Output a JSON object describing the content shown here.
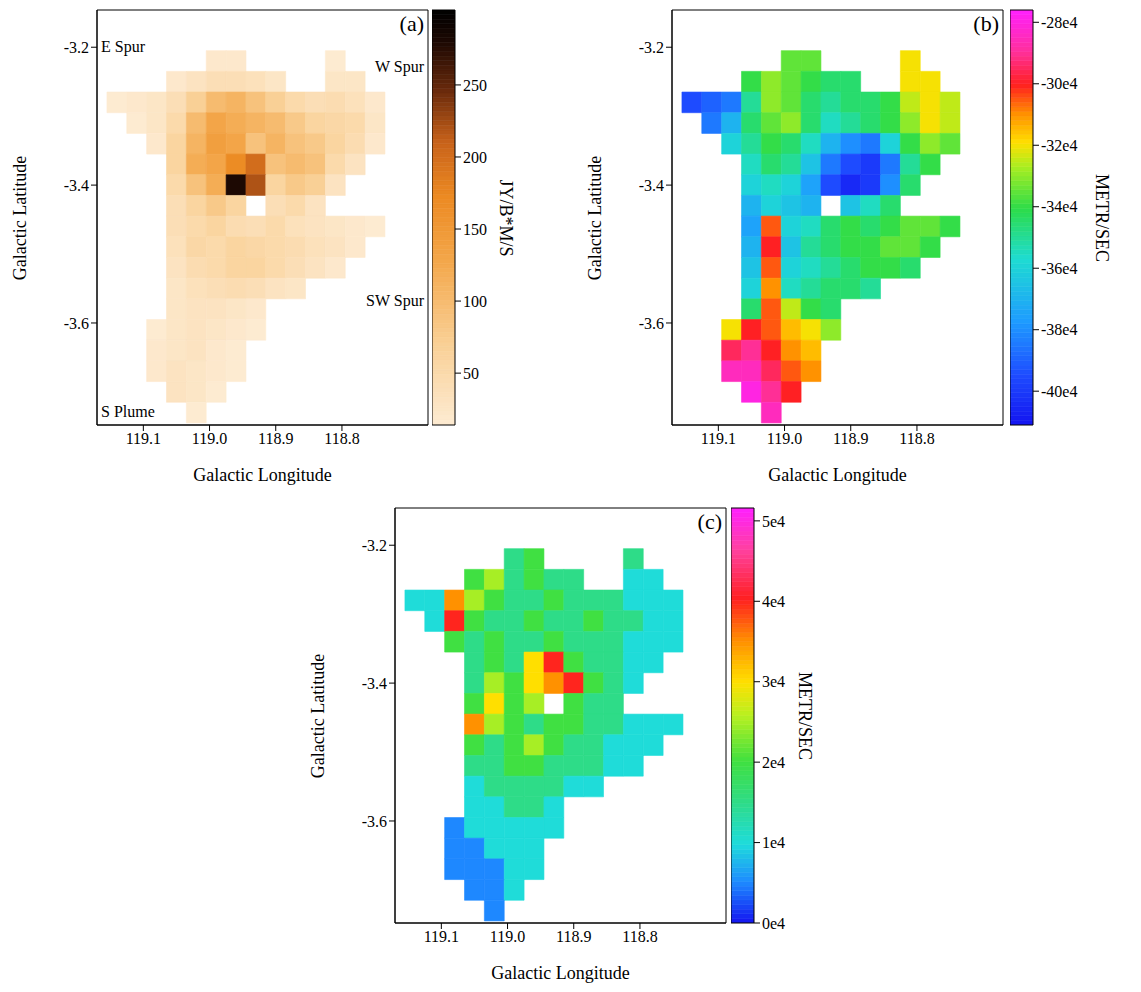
{
  "chart_data": [
    {
      "type": "heatmap",
      "title": "(a)",
      "x_label": "Galactic Longitude",
      "y_label": "Galactic Latitude",
      "xlim": [
        119.17,
        118.67
      ],
      "ylim": [
        -3.748,
        -3.146
      ],
      "xticks": [
        {
          "value": 119.1,
          "label": "119.1"
        },
        {
          "value": 119,
          "label": "119.0"
        },
        118.9,
        118.8
      ],
      "yticks": [
        -3.2,
        -3.4,
        -3.6
      ],
      "annotations": [
        "E Spur",
        "W Spur",
        "SW Spur",
        "S Plume"
      ],
      "colorbar": {
        "label": "JY/B*M/S",
        "range": [
          14,
          302
        ],
        "ticks": [
          50,
          100,
          150,
          200,
          250
        ]
      },
      "x": [
        119.14,
        119.11,
        119.08,
        119.05,
        119.02,
        118.99,
        118.96,
        118.93,
        118.9,
        118.87,
        118.84,
        118.81,
        118.78,
        118.75
      ],
      "y": [
        -3.22,
        -3.25,
        -3.28,
        -3.31,
        -3.34,
        -3.37,
        -3.4,
        -3.43,
        -3.46,
        -3.49,
        -3.52,
        -3.55,
        -3.58,
        -3.61,
        -3.64,
        -3.67,
        -3.7,
        -3.73
      ],
      "z": [
        [
          null,
          null,
          null,
          null,
          null,
          20,
          20,
          null,
          null,
          null,
          null,
          15,
          null,
          null
        ],
        [
          null,
          null,
          null,
          20,
          30,
          40,
          40,
          35,
          25,
          null,
          null,
          25,
          25,
          null
        ],
        [
          15,
          20,
          25,
          40,
          70,
          100,
          110,
          90,
          70,
          50,
          40,
          45,
          35,
          20
        ],
        [
          null,
          15,
          25,
          50,
          100,
          130,
          120,
          110,
          100,
          80,
          60,
          55,
          50,
          25
        ],
        [
          null,
          null,
          20,
          60,
          110,
          140,
          130,
          90,
          110,
          90,
          80,
          60,
          45,
          20
        ],
        [
          null,
          null,
          null,
          60,
          120,
          130,
          170,
          200,
          90,
          100,
          90,
          50,
          30,
          null
        ],
        [
          null,
          null,
          null,
          50,
          90,
          120,
          280,
          220,
          60,
          80,
          70,
          30,
          null,
          null
        ],
        [
          null,
          null,
          null,
          40,
          60,
          80,
          60,
          null,
          40,
          50,
          30,
          null,
          null,
          null
        ],
        [
          null,
          null,
          null,
          40,
          50,
          60,
          45,
          40,
          50,
          35,
          30,
          25,
          20,
          15
        ],
        [
          null,
          null,
          null,
          35,
          55,
          50,
          60,
          55,
          50,
          45,
          35,
          30,
          20,
          null
        ],
        [
          null,
          null,
          null,
          30,
          45,
          50,
          60,
          60,
          50,
          40,
          30,
          20,
          null,
          null
        ],
        [
          null,
          null,
          null,
          25,
          35,
          40,
          45,
          40,
          30,
          25,
          null,
          null,
          null,
          null
        ],
        [
          null,
          null,
          null,
          25,
          30,
          30,
          25,
          20,
          null,
          null,
          null,
          null,
          null,
          null
        ],
        [
          null,
          null,
          15,
          25,
          30,
          25,
          20,
          15,
          null,
          null,
          null,
          null,
          null,
          null
        ],
        [
          null,
          null,
          20,
          25,
          30,
          20,
          15,
          null,
          null,
          null,
          null,
          null,
          null,
          null
        ],
        [
          null,
          null,
          20,
          30,
          25,
          20,
          15,
          null,
          null,
          null,
          null,
          null,
          null,
          null
        ],
        [
          null,
          null,
          null,
          30,
          25,
          15,
          null,
          null,
          null,
          null,
          null,
          null,
          null,
          null
        ],
        [
          null,
          null,
          null,
          null,
          15,
          null,
          null,
          null,
          null,
          null,
          null,
          null,
          null,
          null
        ]
      ]
    },
    {
      "type": "heatmap",
      "title": "(b)",
      "x_label": "Galactic Longitude",
      "y_label": "Galactic Latitude",
      "xlim": [
        119.17,
        118.67
      ],
      "ylim": [
        -3.748,
        -3.146
      ],
      "xticks": [
        {
          "value": 119.1,
          "label": "119.1"
        },
        {
          "value": 119,
          "label": "119.0"
        },
        118.9,
        118.8
      ],
      "yticks": [
        -3.2,
        -3.4,
        -3.6
      ],
      "colorbar": {
        "label": "METR/SEC",
        "range": [
          -411000,
          -276000
        ],
        "ticks": [
          {
            "value": -280000,
            "label": "-28e4"
          },
          {
            "value": -300000,
            "label": "-30e4"
          },
          {
            "value": -320000,
            "label": "-32e4"
          },
          {
            "value": -340000,
            "label": "-34e4"
          },
          {
            "value": -360000,
            "label": "-36e4"
          },
          {
            "value": -380000,
            "label": "-38e4"
          },
          {
            "value": -400000,
            "label": "-40e4"
          }
        ]
      },
      "x": [
        119.14,
        119.11,
        119.08,
        119.05,
        119.02,
        118.99,
        118.96,
        118.93,
        118.9,
        118.87,
        118.84,
        118.81,
        118.78,
        118.75
      ],
      "y": [
        -3.22,
        -3.25,
        -3.28,
        -3.31,
        -3.34,
        -3.37,
        -3.4,
        -3.43,
        -3.46,
        -3.49,
        -3.52,
        -3.55,
        -3.58,
        -3.61,
        -3.64,
        -3.67,
        -3.7,
        -3.73
      ],
      "z": [
        [
          null,
          null,
          null,
          null,
          null,
          -335000,
          -335000,
          null,
          null,
          null,
          null,
          -320000,
          null,
          null
        ],
        [
          null,
          null,
          null,
          -340000,
          -330000,
          -335000,
          -340000,
          -345000,
          -345000,
          null,
          null,
          -320000,
          -320000,
          null
        ],
        [
          -395000,
          -390000,
          -385000,
          -350000,
          -330000,
          -335000,
          -345000,
          -350000,
          -345000,
          -345000,
          -340000,
          -325000,
          -320000,
          -325000
        ],
        [
          null,
          -385000,
          -370000,
          -345000,
          -335000,
          -330000,
          -345000,
          -355000,
          -350000,
          -345000,
          -340000,
          -330000,
          -320000,
          -325000
        ],
        [
          null,
          null,
          -360000,
          -350000,
          -340000,
          -345000,
          -355000,
          -370000,
          -380000,
          -385000,
          -360000,
          -340000,
          -330000,
          -335000
        ],
        [
          null,
          null,
          null,
          -355000,
          -345000,
          -350000,
          -365000,
          -385000,
          -395000,
          -400000,
          -385000,
          -350000,
          -340000,
          null
        ],
        [
          null,
          null,
          null,
          -360000,
          -355000,
          -360000,
          -375000,
          -395000,
          -405000,
          -400000,
          -380000,
          -345000,
          null,
          null
        ],
        [
          null,
          null,
          null,
          -370000,
          -360000,
          -365000,
          -370000,
          null,
          -365000,
          -355000,
          -345000,
          null,
          null,
          null
        ],
        [
          null,
          null,
          null,
          -375000,
          -305000,
          -360000,
          -355000,
          -345000,
          -340000,
          -345000,
          -340000,
          -335000,
          -335000,
          -340000
        ],
        [
          null,
          null,
          null,
          -370000,
          -300000,
          -365000,
          -350000,
          -345000,
          -340000,
          -340000,
          -335000,
          -335000,
          -340000,
          null
        ],
        [
          null,
          null,
          null,
          -365000,
          -305000,
          -360000,
          -355000,
          -350000,
          -345000,
          -340000,
          -340000,
          -345000,
          null,
          null
        ],
        [
          null,
          null,
          null,
          -360000,
          -310000,
          -355000,
          -350000,
          -345000,
          -345000,
          -350000,
          null,
          null,
          null,
          null
        ],
        [
          null,
          null,
          null,
          -345000,
          -305000,
          -325000,
          -340000,
          -345000,
          null,
          null,
          null,
          null,
          null,
          null
        ],
        [
          null,
          null,
          -320000,
          -300000,
          -305000,
          -315000,
          -320000,
          -330000,
          null,
          null,
          null,
          null,
          null,
          null
        ],
        [
          null,
          null,
          -295000,
          -290000,
          -300000,
          -310000,
          -315000,
          null,
          null,
          null,
          null,
          null,
          null,
          null
        ],
        [
          null,
          null,
          -285000,
          -285000,
          -295000,
          -305000,
          -310000,
          null,
          null,
          null,
          null,
          null,
          null,
          null
        ],
        [
          null,
          null,
          null,
          -280000,
          -290000,
          -300000,
          null,
          null,
          null,
          null,
          null,
          null,
          null,
          null
        ],
        [
          null,
          null,
          null,
          null,
          -285000,
          null,
          null,
          null,
          null,
          null,
          null,
          null,
          null,
          null
        ]
      ]
    },
    {
      "type": "heatmap",
      "title": "(c)",
      "x_label": "Galactic Longitude",
      "y_label": "Galactic Latitude",
      "xlim": [
        119.17,
        118.67
      ],
      "ylim": [
        -3.748,
        -3.146
      ],
      "xticks": [
        {
          "value": 119.1,
          "label": "119.1"
        },
        {
          "value": 119,
          "label": "119.0"
        },
        118.9,
        118.8
      ],
      "yticks": [
        -3.2,
        -3.4,
        -3.6
      ],
      "colorbar": {
        "label": "METR/SEC",
        "range": [
          0,
          51600
        ],
        "ticks": [
          {
            "value": 0,
            "label": "0e4"
          },
          {
            "value": 10000,
            "label": "1e4"
          },
          {
            "value": 20000,
            "label": "2e4"
          },
          {
            "value": 30000,
            "label": "3e4"
          },
          {
            "value": 40000,
            "label": "4e4"
          },
          {
            "value": 50000,
            "label": "5e4"
          }
        ]
      },
      "x": [
        119.14,
        119.11,
        119.08,
        119.05,
        119.02,
        118.99,
        118.96,
        118.93,
        118.9,
        118.87,
        118.84,
        118.81,
        118.78,
        118.75
      ],
      "y": [
        -3.22,
        -3.25,
        -3.28,
        -3.31,
        -3.34,
        -3.37,
        -3.4,
        -3.43,
        -3.46,
        -3.49,
        -3.52,
        -3.55,
        -3.58,
        -3.61,
        -3.64,
        -3.67,
        -3.7,
        -3.73
      ],
      "z": [
        [
          null,
          null,
          null,
          null,
          null,
          15000,
          20000,
          null,
          null,
          null,
          null,
          15000,
          null,
          null
        ],
        [
          null,
          null,
          null,
          20000,
          25000,
          15000,
          20000,
          15000,
          15000,
          null,
          null,
          10000,
          10000,
          null
        ],
        [
          10000,
          10000,
          35000,
          25000,
          20000,
          15000,
          15000,
          20000,
          15000,
          15000,
          15000,
          10000,
          10000,
          10000
        ],
        [
          null,
          10000,
          40000,
          20000,
          15000,
          15000,
          20000,
          15000,
          15000,
          20000,
          15000,
          15000,
          10000,
          10000
        ],
        [
          null,
          null,
          20000,
          15000,
          20000,
          15000,
          15000,
          20000,
          15000,
          15000,
          15000,
          10000,
          10000,
          10000
        ],
        [
          null,
          null,
          null,
          15000,
          20000,
          15000,
          30000,
          40000,
          20000,
          15000,
          15000,
          10000,
          10000,
          null
        ],
        [
          null,
          null,
          null,
          15000,
          25000,
          20000,
          30000,
          35000,
          40000,
          20000,
          15000,
          10000,
          null,
          null
        ],
        [
          null,
          null,
          null,
          20000,
          30000,
          20000,
          25000,
          null,
          20000,
          15000,
          15000,
          null,
          null,
          null
        ],
        [
          null,
          null,
          null,
          35000,
          25000,
          20000,
          15000,
          20000,
          20000,
          15000,
          15000,
          10000,
          10000,
          10000
        ],
        [
          null,
          null,
          null,
          20000,
          15000,
          20000,
          25000,
          20000,
          15000,
          15000,
          10000,
          10000,
          10000,
          null
        ],
        [
          null,
          null,
          null,
          15000,
          15000,
          20000,
          20000,
          15000,
          15000,
          15000,
          10000,
          10000,
          null,
          null
        ],
        [
          null,
          null,
          null,
          10000,
          15000,
          15000,
          15000,
          15000,
          10000,
          10000,
          null,
          null,
          null,
          null
        ],
        [
          null,
          null,
          null,
          10000,
          10000,
          15000,
          15000,
          10000,
          null,
          null,
          null,
          null,
          null,
          null
        ],
        [
          null,
          null,
          5000,
          10000,
          10000,
          10000,
          10000,
          10000,
          null,
          null,
          null,
          null,
          null,
          null
        ],
        [
          null,
          null,
          5000,
          5000,
          10000,
          10000,
          10000,
          null,
          null,
          null,
          null,
          null,
          null,
          null
        ],
        [
          null,
          null,
          5000,
          5000,
          5000,
          10000,
          10000,
          null,
          null,
          null,
          null,
          null,
          null,
          null
        ],
        [
          null,
          null,
          null,
          5000,
          5000,
          10000,
          null,
          null,
          null,
          null,
          null,
          null,
          null,
          null
        ],
        [
          null,
          null,
          null,
          null,
          5000,
          null,
          null,
          null,
          null,
          null,
          null,
          null,
          null,
          null
        ]
      ]
    }
  ]
}
